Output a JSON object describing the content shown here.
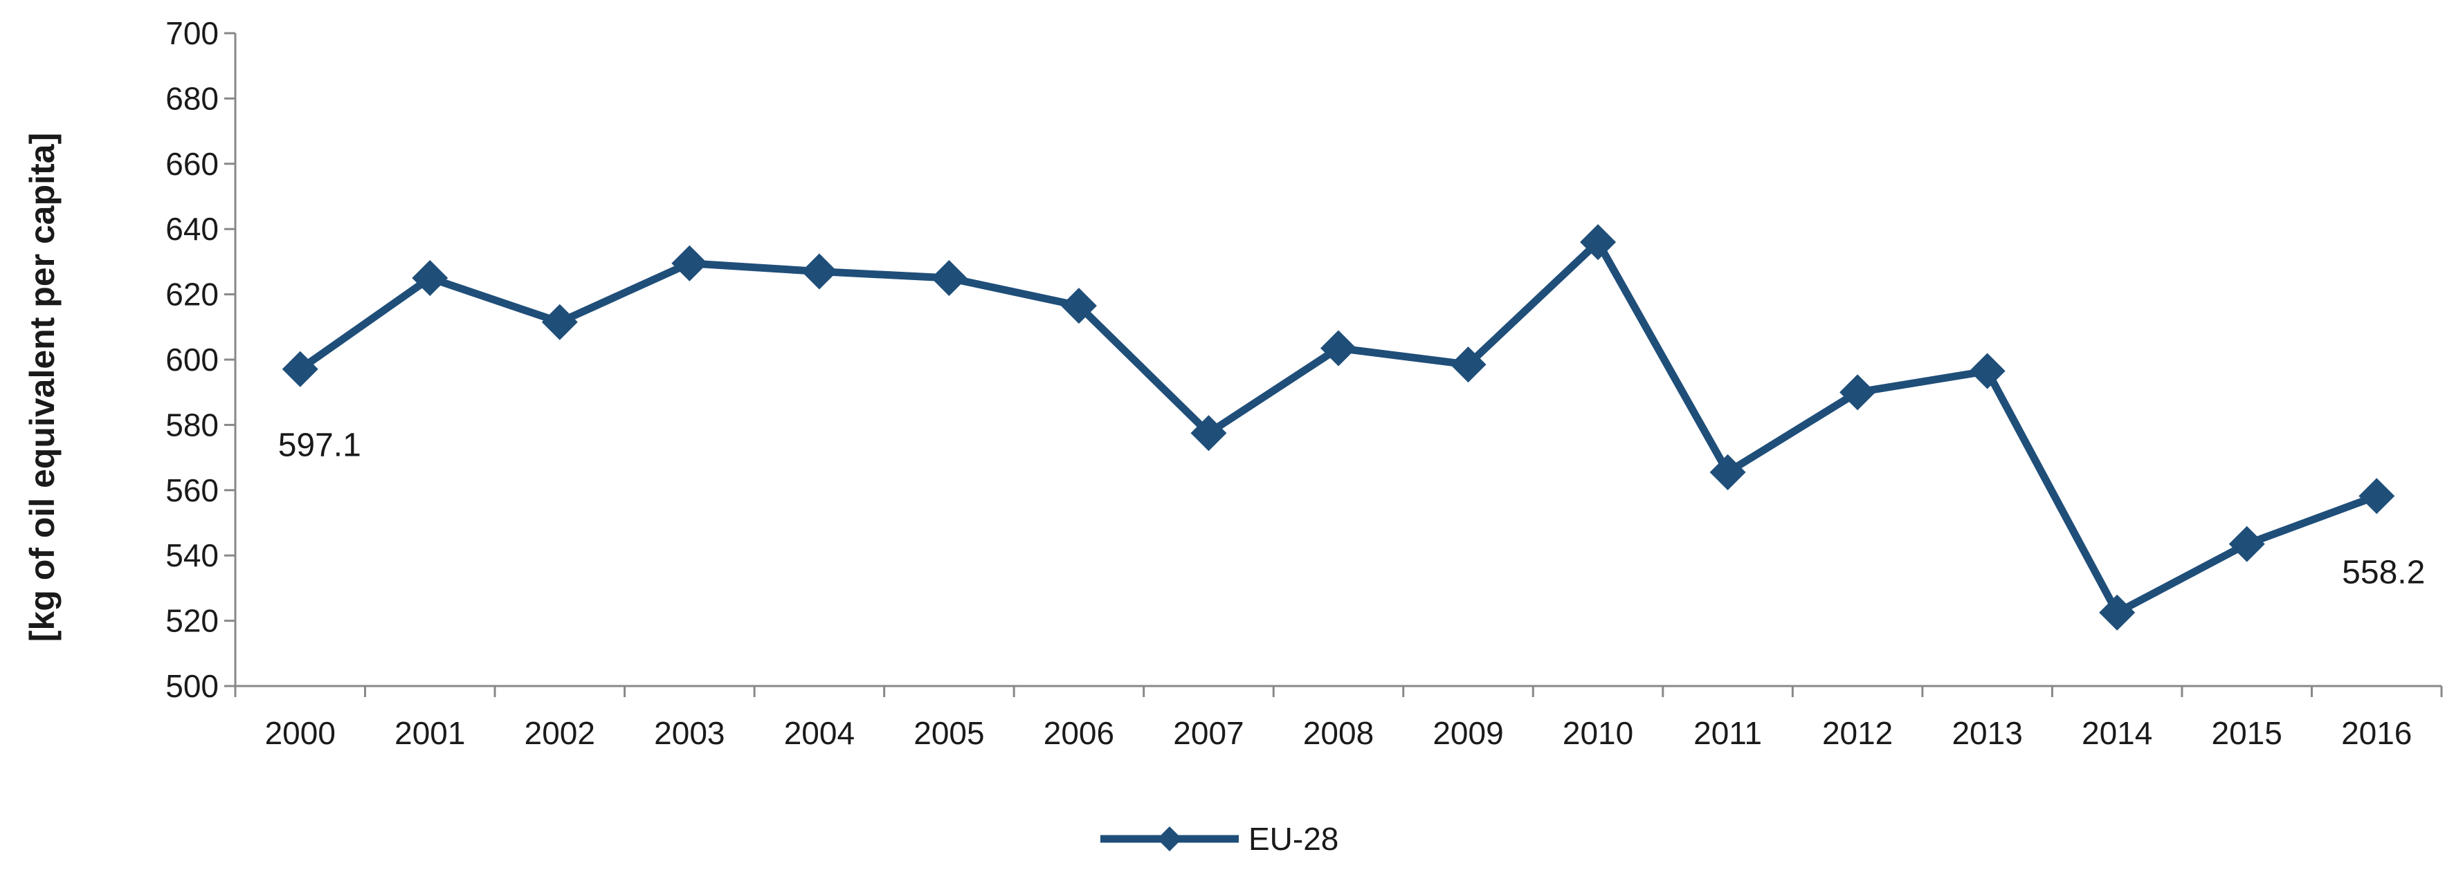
{
  "chart_data": {
    "type": "line",
    "title": "",
    "xlabel": "",
    "ylabel": "[kg of oil equivalent  per capita]",
    "ylim": [
      500,
      700
    ],
    "yticks": [
      500,
      520,
      540,
      560,
      580,
      600,
      620,
      640,
      660,
      680,
      700
    ],
    "categories": [
      "2000",
      "2001",
      "2002",
      "2003",
      "2004",
      "2005",
      "2006",
      "2007",
      "2008",
      "2009",
      "2010",
      "2011",
      "2012",
      "2013",
      "2014",
      "2015",
      "2016"
    ],
    "series": [
      {
        "name": "EU-28",
        "color": "#1f4e79",
        "marker": "diamond",
        "values": [
          597.1,
          625,
          611.5,
          629.5,
          627,
          625,
          616.5,
          577.5,
          603.5,
          598.5,
          636,
          565.5,
          590,
          596.5,
          522.5,
          543.5,
          558.2
        ]
      }
    ],
    "data_labels": [
      {
        "index": 0,
        "text": "597.1"
      },
      {
        "index": 16,
        "text": "558.2"
      }
    ],
    "grid": false,
    "legend": "bottom-center"
  }
}
